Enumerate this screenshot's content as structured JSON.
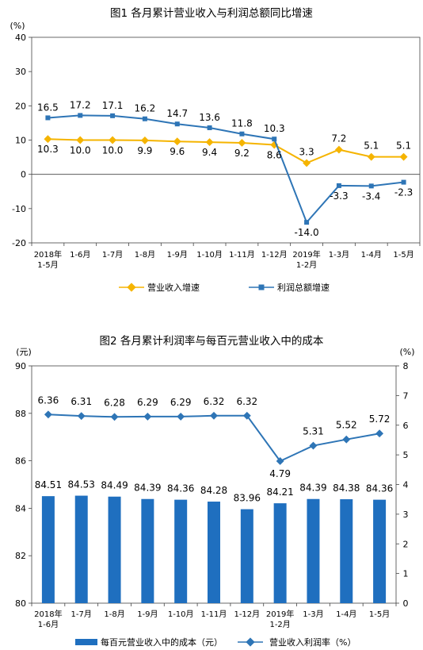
{
  "chart_data": [
    {
      "type": "line",
      "title": "图1  各月累计营业收入与利润总额同比增速",
      "unit_label": "(%)",
      "categories": [
        [
          "2018年",
          "1-5月"
        ],
        [
          "1-6月"
        ],
        [
          "1-7月"
        ],
        [
          "1-8月"
        ],
        [
          "1-9月"
        ],
        [
          "1-10月"
        ],
        [
          "1-11月"
        ],
        [
          "1-12月"
        ],
        [
          "2019年",
          "1-2月"
        ],
        [
          "1-3月"
        ],
        [
          "1-4月"
        ],
        [
          "1-5月"
        ]
      ],
      "ylim": [
        -20,
        40
      ],
      "yticks": [
        -20,
        -10,
        0,
        10,
        20,
        30,
        40
      ],
      "ytick_labels": [
        "-20",
        "-10",
        "0",
        "10",
        "20",
        "30",
        "40"
      ],
      "grid": false,
      "legend_position": "bottom",
      "series": [
        {
          "name": "营业收入增速",
          "color": "#f5b400",
          "marker": "diamond",
          "values": [
            10.3,
            10.0,
            10.0,
            9.9,
            9.6,
            9.4,
            9.2,
            8.6,
            3.3,
            7.2,
            5.1,
            5.1
          ],
          "labels": [
            "10.3",
            "10.0",
            "10.0",
            "9.9",
            "9.6",
            "9.4",
            "9.2",
            "8.6",
            "3.3",
            "7.2",
            "5.1",
            "5.1"
          ]
        },
        {
          "name": "利润总额增速",
          "color": "#2e75b6",
          "marker": "square",
          "values": [
            16.5,
            17.2,
            17.1,
            16.2,
            14.7,
            13.6,
            11.8,
            10.3,
            -14.0,
            -3.3,
            -3.4,
            -2.3
          ],
          "labels": [
            "16.5",
            "17.2",
            "17.1",
            "16.2",
            "14.7",
            "13.6",
            "11.8",
            "10.3",
            "-14.0",
            "-3.3",
            "-3.4",
            "-2.3"
          ]
        }
      ]
    },
    {
      "type": "bar",
      "title": "图2  各月累计利润率与每百元营业收入中的成本",
      "left_unit_label": "(元)",
      "right_unit_label": "(%)",
      "categories": [
        [
          "2018年",
          "1-6月"
        ],
        [
          "1-7月"
        ],
        [
          "1-8月"
        ],
        [
          "1-9月"
        ],
        [
          "1-10月"
        ],
        [
          "1-11月"
        ],
        [
          "1-12月"
        ],
        [
          "2019年",
          "1-2月"
        ],
        [
          "1-3月"
        ],
        [
          "1-4月"
        ],
        [
          "1-5月"
        ]
      ],
      "ylim": [
        80,
        90
      ],
      "yticks": [
        80,
        82,
        84,
        86,
        88,
        90
      ],
      "ytick_labels": [
        "80",
        "82",
        "84",
        "86",
        "88",
        "90"
      ],
      "y2lim": [
        0,
        8
      ],
      "y2ticks": [
        0,
        1,
        2,
        3,
        4,
        5,
        6,
        7,
        8
      ],
      "y2tick_labels": [
        "0",
        "1",
        "2",
        "3",
        "4",
        "5",
        "6",
        "7",
        "8"
      ],
      "grid": false,
      "legend_position": "bottom",
      "series": [
        {
          "name": "每百元营业收入中的成本（元）",
          "type": "bar",
          "axis": "left",
          "color": "#1f6fbf",
          "values": [
            84.51,
            84.53,
            84.49,
            84.39,
            84.36,
            84.28,
            83.96,
            84.21,
            84.39,
            84.38,
            84.36
          ],
          "labels": [
            "84.51",
            "84.53",
            "84.49",
            "84.39",
            "84.36",
            "84.28",
            "83.96",
            "84.21",
            "84.39",
            "84.38",
            "84.36"
          ]
        },
        {
          "name": "营业收入利润率（%）",
          "type": "line",
          "axis": "right",
          "color": "#2e75b6",
          "marker": "diamond",
          "values": [
            6.36,
            6.31,
            6.28,
            6.29,
            6.29,
            6.32,
            6.32,
            4.79,
            5.31,
            5.52,
            5.72
          ],
          "labels": [
            "6.36",
            "6.31",
            "6.28",
            "6.29",
            "6.29",
            "6.32",
            "6.32",
            "4.79",
            "5.31",
            "5.52",
            "5.72"
          ]
        }
      ]
    }
  ]
}
